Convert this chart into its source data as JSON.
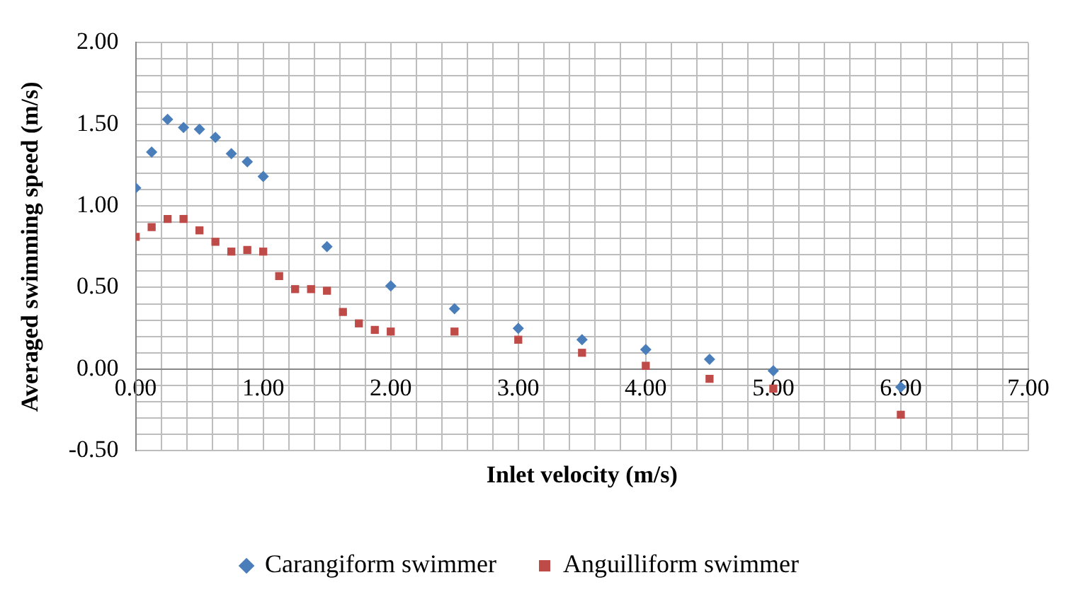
{
  "chart_data": {
    "type": "scatter",
    "xlabel": "Inlet velocity (m/s)",
    "ylabel": "Averaged swimming speed (m/s)",
    "grid": true,
    "legend": "bottom",
    "xlim": [
      0,
      7
    ],
    "ylim": [
      -0.5,
      2
    ],
    "xticks": [
      {
        "value": 0,
        "label": "0.00"
      },
      {
        "value": 0.2,
        "label": null
      },
      {
        "value": 0.4,
        "label": null
      },
      {
        "value": 0.6,
        "label": null
      },
      {
        "value": 0.8,
        "label": null
      },
      {
        "value": 1,
        "label": "1.00"
      },
      {
        "value": 1.2,
        "label": null
      },
      {
        "value": 1.4,
        "label": null
      },
      {
        "value": 1.6,
        "label": null
      },
      {
        "value": 1.8,
        "label": null
      },
      {
        "value": 2,
        "label": "2.00"
      },
      {
        "value": 2.2,
        "label": null
      },
      {
        "value": 2.4,
        "label": null
      },
      {
        "value": 2.6,
        "label": null
      },
      {
        "value": 2.8,
        "label": null
      },
      {
        "value": 3,
        "label": "3.00"
      },
      {
        "value": 3.2,
        "label": null
      },
      {
        "value": 3.4,
        "label": null
      },
      {
        "value": 3.6,
        "label": null
      },
      {
        "value": 3.8,
        "label": null
      },
      {
        "value": 4,
        "label": "4.00"
      },
      {
        "value": 4.2,
        "label": null
      },
      {
        "value": 4.4,
        "label": null
      },
      {
        "value": 4.6,
        "label": null
      },
      {
        "value": 4.8,
        "label": null
      },
      {
        "value": 5,
        "label": "5.00"
      },
      {
        "value": 5.2,
        "label": null
      },
      {
        "value": 5.4,
        "label": null
      },
      {
        "value": 5.6,
        "label": null
      },
      {
        "value": 5.8,
        "label": null
      },
      {
        "value": 6,
        "label": "6.00"
      },
      {
        "value": 6.2,
        "label": null
      },
      {
        "value": 6.4,
        "label": null
      },
      {
        "value": 6.6,
        "label": null
      },
      {
        "value": 6.8,
        "label": null
      },
      {
        "value": 7,
        "label": "7.00"
      }
    ],
    "yticks": [
      {
        "value": -0.5,
        "label": "-0.50"
      },
      {
        "value": -0.4,
        "label": null
      },
      {
        "value": -0.3,
        "label": null
      },
      {
        "value": -0.2,
        "label": null
      },
      {
        "value": -0.1,
        "label": null
      },
      {
        "value": 0,
        "label": "0.00"
      },
      {
        "value": 0.1,
        "label": null
      },
      {
        "value": 0.2,
        "label": null
      },
      {
        "value": 0.3,
        "label": null
      },
      {
        "value": 0.4,
        "label": null
      },
      {
        "value": 0.5,
        "label": "0.50"
      },
      {
        "value": 0.6,
        "label": null
      },
      {
        "value": 0.7,
        "label": null
      },
      {
        "value": 0.8,
        "label": null
      },
      {
        "value": 0.9,
        "label": null
      },
      {
        "value": 1,
        "label": "1.00"
      },
      {
        "value": 1.1,
        "label": null
      },
      {
        "value": 1.2,
        "label": null
      },
      {
        "value": 1.3,
        "label": null
      },
      {
        "value": 1.4,
        "label": null
      },
      {
        "value": 1.5,
        "label": "1.50"
      },
      {
        "value": 1.6,
        "label": null
      },
      {
        "value": 1.7,
        "label": null
      },
      {
        "value": 1.8,
        "label": null
      },
      {
        "value": 1.9,
        "label": null
      },
      {
        "value": 2,
        "label": "2.00"
      }
    ],
    "series": [
      {
        "name": "Carangiform swimmer",
        "color": "#4a7ebb",
        "marker": "diamond",
        "x": [
          0,
          0.125,
          0.25,
          0.375,
          0.5,
          0.625,
          0.75,
          0.875,
          1,
          1.5,
          2,
          2.5,
          3,
          3.5,
          4,
          4.5,
          5,
          6
        ],
        "values": [
          1.11,
          1.33,
          1.53,
          1.48,
          1.47,
          1.42,
          1.32,
          1.27,
          1.18,
          0.75,
          0.51,
          0.37,
          0.25,
          0.18,
          0.12,
          0.06,
          -0.01,
          -0.11
        ]
      },
      {
        "name": "Anguilliform swimmer",
        "color": "#be4b48",
        "marker": "square",
        "x": [
          0,
          0.125,
          0.25,
          0.375,
          0.5,
          0.625,
          0.75,
          0.875,
          1,
          1.125,
          1.25,
          1.375,
          1.5,
          1.625,
          1.75,
          1.875,
          2,
          2.5,
          3,
          3.5,
          4,
          4.5,
          5,
          6
        ],
        "values": [
          0.81,
          0.87,
          0.92,
          0.92,
          0.85,
          0.78,
          0.72,
          0.73,
          0.72,
          0.57,
          0.49,
          0.49,
          0.48,
          0.35,
          0.28,
          0.24,
          0.23,
          0.23,
          0.18,
          0.1,
          0.02,
          -0.06,
          -0.12,
          -0.28
        ]
      }
    ]
  }
}
